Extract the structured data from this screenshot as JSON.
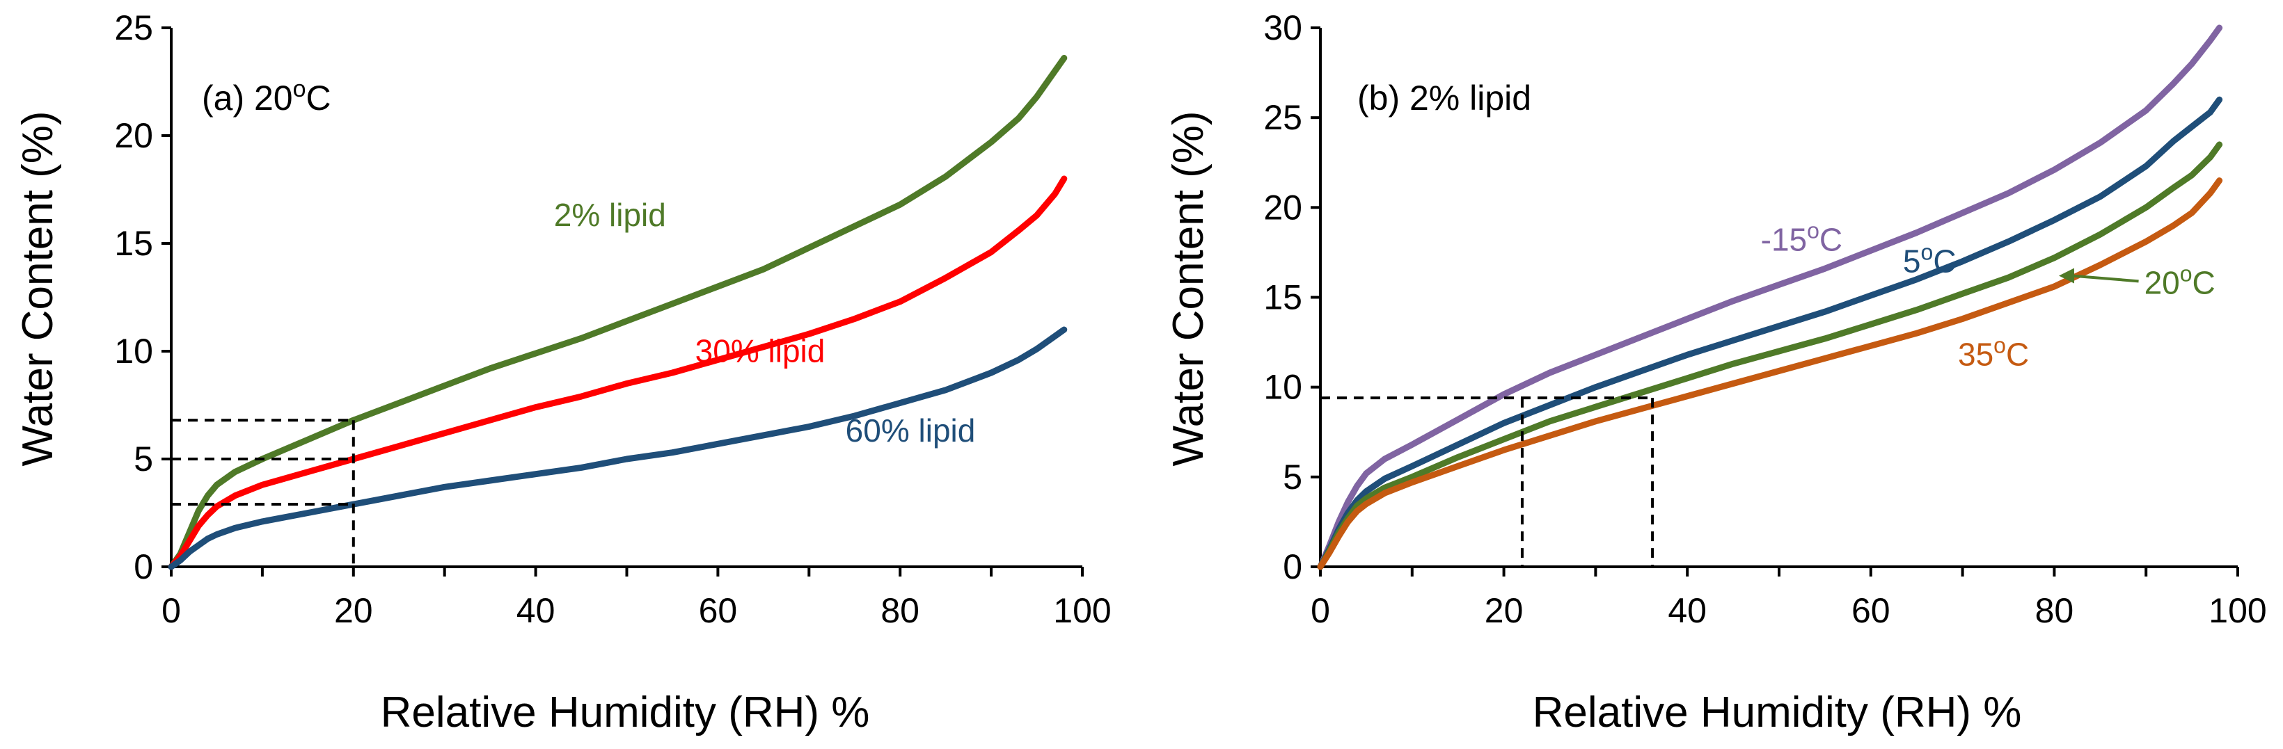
{
  "chart_data": [
    {
      "type": "line",
      "title": "(a) 20",
      "title_super": "o",
      "title_suffix": "C",
      "xlabel": "Relative Humidity (RH) %",
      "ylabel": "Water Content (%)",
      "xlim": [
        0,
        100
      ],
      "ylim": [
        0,
        25
      ],
      "xticks": [
        0,
        20,
        40,
        60,
        80,
        100
      ],
      "yticks": [
        0,
        5,
        10,
        15,
        20,
        25
      ],
      "series": [
        {
          "name": "2% lipid",
          "color": "#4f7a28",
          "x": [
            0,
            1,
            2,
            3,
            4,
            5,
            7,
            10,
            15,
            20,
            25,
            30,
            35,
            40,
            45,
            50,
            55,
            60,
            65,
            70,
            75,
            80,
            85,
            90,
            93,
            95,
            97,
            98
          ],
          "y": [
            0,
            0.6,
            1.6,
            2.6,
            3.3,
            3.8,
            4.4,
            5.0,
            5.9,
            6.8,
            7.6,
            8.4,
            9.2,
            9.9,
            10.6,
            11.4,
            12.2,
            13.0,
            13.8,
            14.8,
            15.8,
            16.8,
            18.1,
            19.7,
            20.8,
            21.8,
            23.0,
            23.6
          ],
          "label": "2% lipid",
          "label_anchor": [
            42,
            15.8
          ]
        },
        {
          "name": "30% lipid",
          "color": "#ff0000",
          "x": [
            0,
            1,
            2,
            3,
            4,
            5,
            7,
            10,
            15,
            20,
            25,
            30,
            35,
            40,
            45,
            50,
            55,
            60,
            65,
            70,
            75,
            80,
            85,
            90,
            93,
            95,
            97,
            98
          ],
          "y": [
            0,
            0.5,
            1.2,
            1.9,
            2.4,
            2.8,
            3.3,
            3.8,
            4.4,
            5.0,
            5.6,
            6.2,
            6.8,
            7.4,
            7.9,
            8.5,
            9.0,
            9.6,
            10.2,
            10.8,
            11.5,
            12.3,
            13.4,
            14.6,
            15.6,
            16.3,
            17.3,
            18.0
          ],
          "label": "30% lipid",
          "label_anchor": [
            57.5,
            9.5
          ]
        },
        {
          "name": "60% lipid",
          "color": "#1f4e79",
          "x": [
            0,
            1,
            2,
            3,
            4,
            5,
            7,
            10,
            15,
            20,
            25,
            30,
            35,
            40,
            45,
            50,
            55,
            60,
            65,
            70,
            75,
            80,
            85,
            90,
            93,
            95,
            97,
            98
          ],
          "y": [
            0,
            0.3,
            0.7,
            1.0,
            1.3,
            1.5,
            1.8,
            2.1,
            2.5,
            2.9,
            3.3,
            3.7,
            4.0,
            4.3,
            4.6,
            5.0,
            5.3,
            5.7,
            6.1,
            6.5,
            7.0,
            7.6,
            8.2,
            9.0,
            9.6,
            10.1,
            10.7,
            11.0
          ],
          "label": "60% lipid",
          "label_anchor": [
            74,
            5.8
          ]
        }
      ],
      "guides": {
        "x_value": 20,
        "y_values": [
          2.9,
          5.0,
          6.8
        ]
      }
    },
    {
      "type": "line",
      "title": "(b) 2% lipid",
      "xlabel": "Relative Humidity (RH) %",
      "ylabel": "Water Content (%)",
      "xlim": [
        0,
        100
      ],
      "ylim": [
        0,
        30
      ],
      "xticks": [
        0,
        20,
        40,
        60,
        80,
        100
      ],
      "yticks": [
        0,
        5,
        10,
        15,
        20,
        25,
        30
      ],
      "series": [
        {
          "name": "-15oC",
          "color": "#8064a2",
          "x": [
            0,
            1,
            2,
            3,
            4,
            5,
            7,
            10,
            15,
            20,
            25,
            30,
            35,
            40,
            45,
            50,
            55,
            60,
            65,
            70,
            75,
            80,
            85,
            90,
            93,
            95,
            97,
            98
          ],
          "y": [
            0,
            1.2,
            2.5,
            3.6,
            4.5,
            5.2,
            6.0,
            6.8,
            8.2,
            9.6,
            10.8,
            11.8,
            12.8,
            13.8,
            14.8,
            15.7,
            16.6,
            17.6,
            18.6,
            19.7,
            20.8,
            22.1,
            23.6,
            25.4,
            26.9,
            28.0,
            29.3,
            30.0
          ],
          "label_main": "-15",
          "label_super": "o",
          "label_suffix": "C",
          "label_anchor": [
            48,
            17.6
          ]
        },
        {
          "name": "5oC",
          "color": "#1f4e79",
          "x": [
            0,
            1,
            2,
            3,
            4,
            5,
            7,
            10,
            15,
            20,
            25,
            30,
            35,
            40,
            45,
            50,
            55,
            60,
            65,
            70,
            75,
            80,
            85,
            90,
            93,
            95,
            97,
            98
          ],
          "y": [
            0,
            1.0,
            2.1,
            3.0,
            3.7,
            4.2,
            4.9,
            5.6,
            6.8,
            8.0,
            9.0,
            10.0,
            10.9,
            11.8,
            12.6,
            13.4,
            14.2,
            15.1,
            16.0,
            17.0,
            18.1,
            19.3,
            20.6,
            22.3,
            23.7,
            24.5,
            25.3,
            26.0
          ],
          "label_main": "5",
          "label_super": "o",
          "label_suffix": "C",
          "label_anchor": [
            63.5,
            16.4
          ]
        },
        {
          "name": "20oC",
          "color": "#4f7a28",
          "x": [
            0,
            1,
            2,
            3,
            4,
            5,
            7,
            10,
            15,
            20,
            25,
            30,
            35,
            40,
            45,
            50,
            55,
            60,
            65,
            70,
            75,
            80,
            85,
            90,
            93,
            95,
            97,
            98
          ],
          "y": [
            0,
            0.9,
            1.9,
            2.7,
            3.4,
            3.8,
            4.4,
            5.0,
            6.1,
            7.1,
            8.1,
            8.9,
            9.7,
            10.5,
            11.3,
            12.0,
            12.7,
            13.5,
            14.3,
            15.2,
            16.1,
            17.2,
            18.5,
            20.0,
            21.1,
            21.8,
            22.8,
            23.5
          ],
          "label_main": "20",
          "label_super": "o",
          "label_suffix": "C",
          "label_anchor": [
            89.8,
            15.2
          ],
          "arrow_to": [
            80.5,
            16.2
          ]
        },
        {
          "name": "35oC",
          "color": "#c55a11",
          "x": [
            0,
            1,
            2,
            3,
            4,
            5,
            7,
            10,
            15,
            20,
            25,
            30,
            35,
            40,
            45,
            50,
            55,
            60,
            65,
            70,
            75,
            80,
            85,
            90,
            93,
            95,
            97,
            98
          ],
          "y": [
            0,
            0.8,
            1.7,
            2.5,
            3.1,
            3.5,
            4.1,
            4.7,
            5.6,
            6.5,
            7.3,
            8.1,
            8.8,
            9.5,
            10.2,
            10.9,
            11.6,
            12.3,
            13.0,
            13.8,
            14.7,
            15.6,
            16.8,
            18.1,
            19.0,
            19.7,
            20.8,
            21.5
          ],
          "label_main": "35",
          "label_super": "o",
          "label_suffix": "C",
          "label_anchor": [
            69.5,
            11.2
          ]
        }
      ],
      "guides": {
        "x_values": [
          22,
          36.2
        ],
        "y_value": 9.4
      }
    }
  ]
}
